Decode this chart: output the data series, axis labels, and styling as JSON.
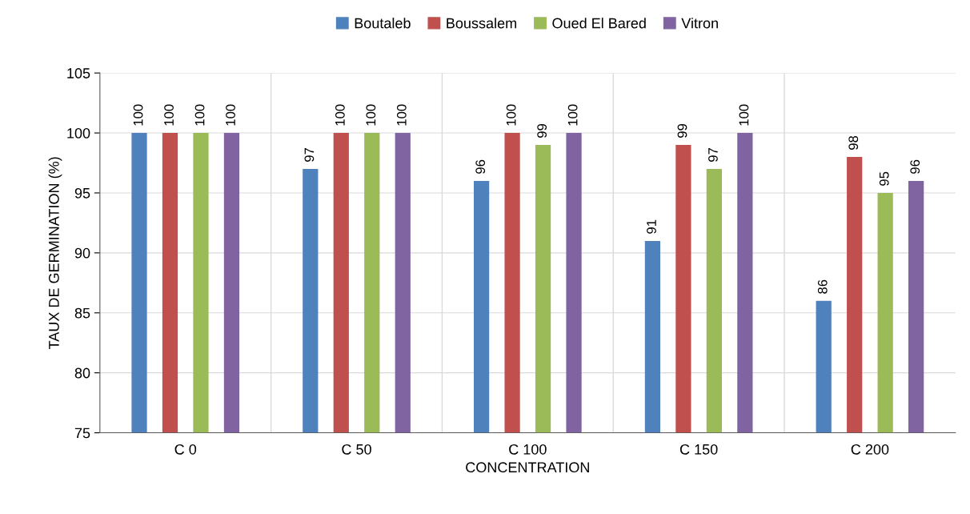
{
  "chart_data": {
    "type": "bar",
    "xlabel": "CONCENTRATION",
    "ylabel": "TAUX DE GERMINATION (%)",
    "categories": [
      "C 0",
      "C 50",
      "C 100",
      "C 150",
      "C 200"
    ],
    "series": [
      {
        "name": "Boutaleb",
        "color": "#4f81bd",
        "values": [
          100,
          97,
          96,
          91,
          86
        ]
      },
      {
        "name": "Boussalem",
        "color": "#c0504d",
        "values": [
          100,
          100,
          100,
          99,
          98
        ]
      },
      {
        "name": "Oued El Bared",
        "color": "#9bbb59",
        "values": [
          100,
          100,
          99,
          97,
          95
        ]
      },
      {
        "name": "Vitron",
        "color": "#8064a2",
        "values": [
          100,
          100,
          100,
          100,
          96
        ]
      }
    ],
    "ylim": [
      75,
      105
    ],
    "yticks": [
      75,
      80,
      85,
      90,
      95,
      100,
      105
    ],
    "grid": true,
    "legend": "top",
    "data_labels": true
  }
}
